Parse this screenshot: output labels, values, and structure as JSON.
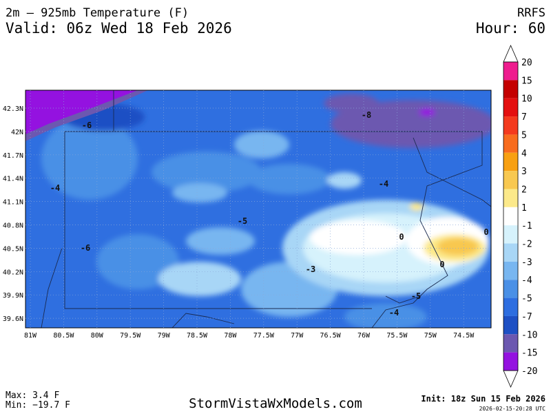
{
  "header": {
    "title": "2m – 925mb Temperature (F)",
    "valid": "Valid: 06z Wed 18 Feb 2026",
    "model": "RRFS",
    "hour": "Hour: 60"
  },
  "map": {
    "lon_labels": [
      "81W",
      "80.5W",
      "80W",
      "79.5W",
      "79W",
      "78.5W",
      "78W",
      "77.5W",
      "77W",
      "76.5W",
      "76W",
      "75.5W",
      "75W",
      "74.5W"
    ],
    "lat_labels": [
      "42.3N",
      "42N",
      "41.7N",
      "41.4N",
      "41.1N",
      "40.8N",
      "40.5N",
      "40.2N",
      "39.9N",
      "39.6N"
    ],
    "contour_labels": [
      "-8",
      "-6",
      "-4",
      "-4",
      "-5",
      "-6",
      "0",
      "-3",
      "0",
      "0",
      "-5",
      "-4"
    ]
  },
  "colorbar": {
    "labels": [
      "20",
      "15",
      "10",
      "7",
      "5",
      "4",
      "3",
      "2",
      "1",
      "-1",
      "-2",
      "-3",
      "-4",
      "-5",
      "-7",
      "-10",
      "-15",
      "-20"
    ],
    "colors": [
      "#ee1c8e",
      "#c40000",
      "#e41010",
      "#f43a1e",
      "#f86c1e",
      "#f8a012",
      "#f8c850",
      "#fce98a",
      "#ffffff",
      "#d6f2fc",
      "#a8d6f6",
      "#78b6f0",
      "#4a90e6",
      "#2e6ee0",
      "#1e50c4",
      "#6c58b0",
      "#9412e0"
    ]
  },
  "footer": {
    "max": "Max: 3.4 F",
    "min": "Min: −19.7 F",
    "site": "StormVistaWxModels.com",
    "init": "Init: 18z Sun 15 Feb 2026",
    "timestamp": "2026-02-15-20:28 UTC"
  }
}
